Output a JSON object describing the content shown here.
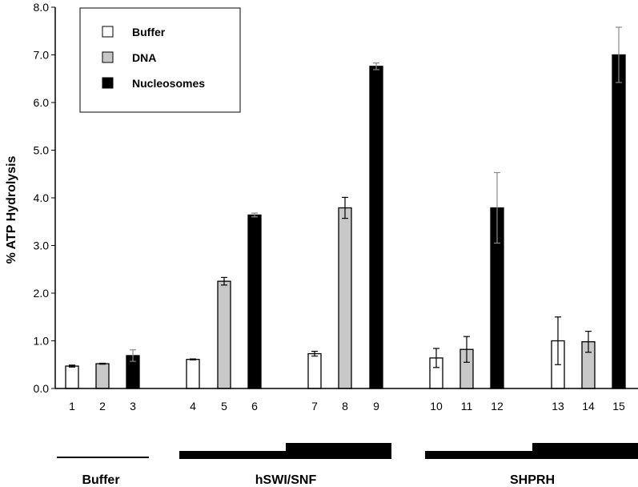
{
  "chart_data": {
    "type": "bar",
    "ylabel": "% ATP Hydrolysis",
    "ylim": [
      0,
      8
    ],
    "yticks": [
      "0.0",
      "1.0",
      "2.0",
      "3.0",
      "4.0",
      "5.0",
      "6.0",
      "7.0",
      "8.0"
    ],
    "categories": [
      "1",
      "2",
      "3",
      "4",
      "5",
      "6",
      "7",
      "8",
      "9",
      "10",
      "11",
      "12",
      "13",
      "14",
      "15"
    ],
    "values": [
      0.47,
      0.52,
      0.69,
      0.61,
      2.25,
      3.64,
      0.73,
      3.79,
      6.76,
      0.64,
      0.82,
      3.79,
      1.0,
      0.98,
      7.0
    ],
    "errors": [
      0.02,
      0.01,
      0.12,
      0.01,
      0.08,
      0.04,
      0.05,
      0.22,
      0.07,
      0.2,
      0.27,
      0.74,
      0.5,
      0.22,
      0.58
    ],
    "substrate": [
      "Buffer",
      "DNA",
      "Nucleosomes",
      "Buffer",
      "DNA",
      "Nucleosomes",
      "Buffer",
      "DNA",
      "Nucleosomes",
      "Buffer",
      "DNA",
      "Nucleosomes",
      "Buffer",
      "DNA",
      "Nucleosomes"
    ],
    "legend": {
      "position": "top-left",
      "entries": [
        {
          "name": "Buffer",
          "color": "#ffffff"
        },
        {
          "name": "DNA",
          "color": "#c8c8c8"
        },
        {
          "name": "Nucleosomes",
          "color": "#000000"
        }
      ]
    },
    "groups": [
      "Buffer",
      "hSWI/SNF",
      "SHPRH"
    ],
    "grid": false
  }
}
